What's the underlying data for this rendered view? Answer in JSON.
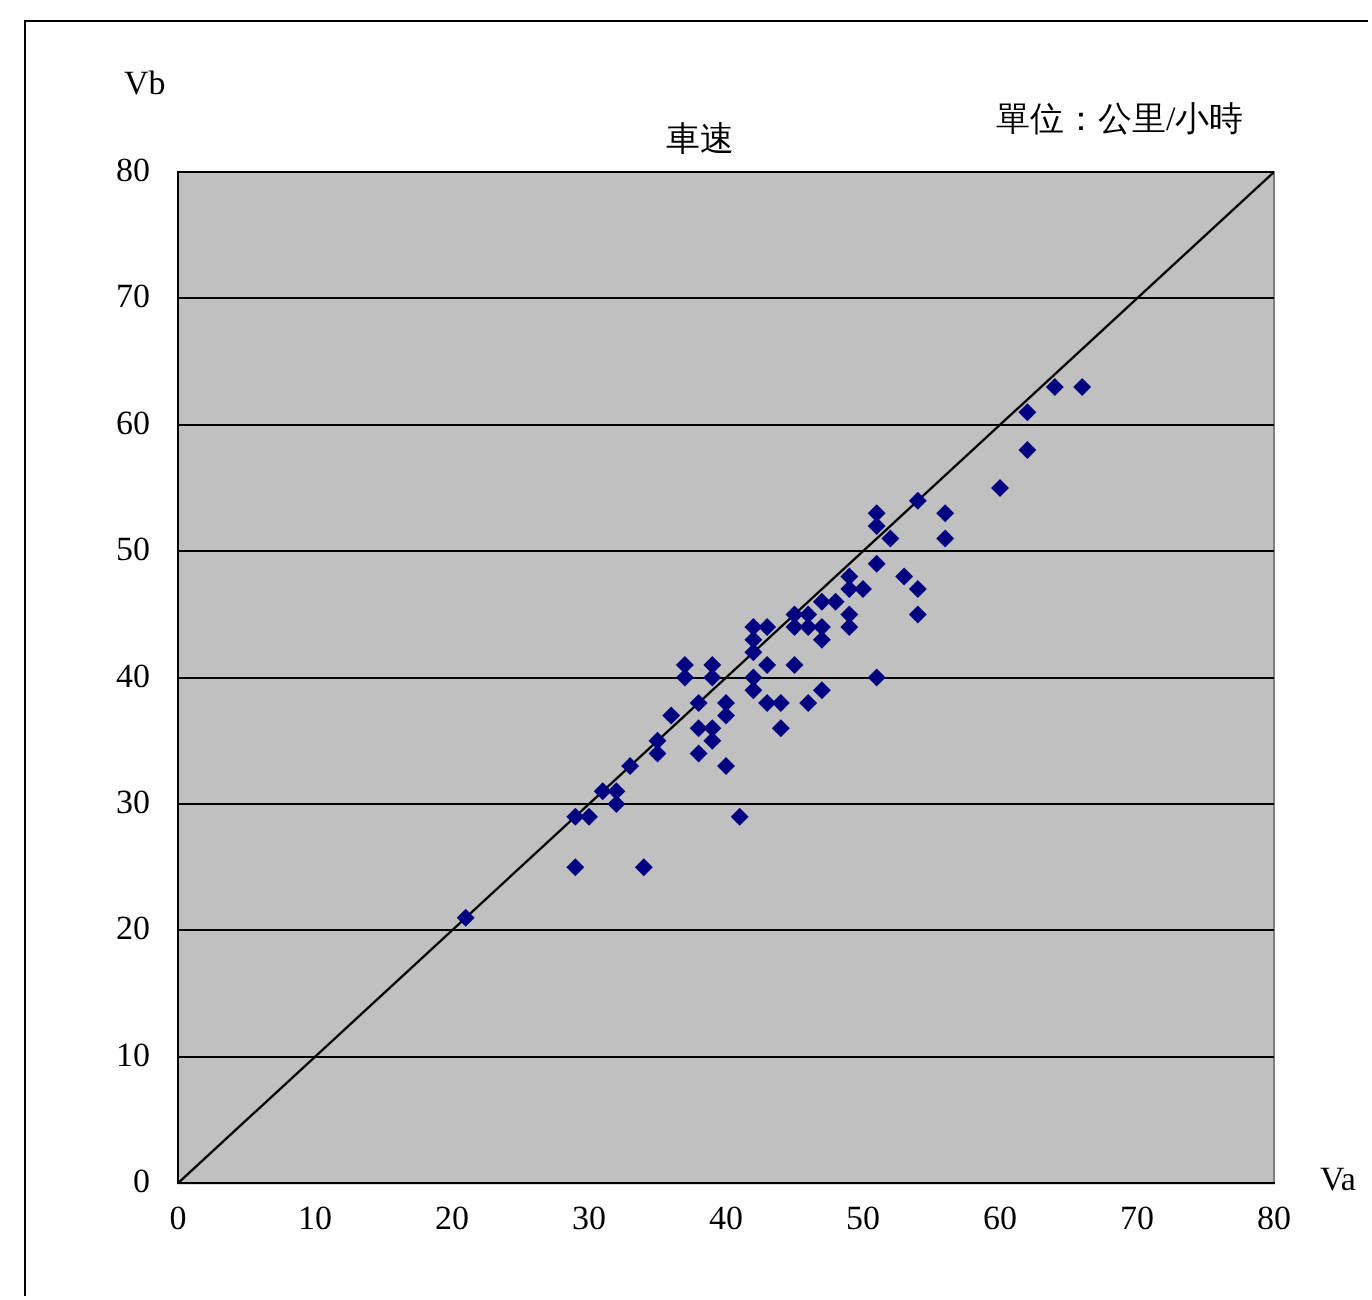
{
  "chart_data": {
    "type": "scatter",
    "title": "車速",
    "xlabel": "Va",
    "ylabel": "Vb",
    "annotations": [
      "單位：公里/小時"
    ],
    "xlim": [
      0,
      80
    ],
    "xticks": [
      0,
      10,
      20,
      30,
      40,
      50,
      60,
      70,
      80
    ],
    "ylim": [
      0,
      80
    ],
    "yticks": [
      0,
      10,
      20,
      30,
      40,
      50,
      60,
      70,
      80
    ],
    "grid": "y",
    "legend": false,
    "marker": "diamond",
    "series": [
      {
        "type": "scatter",
        "color": "#000080",
        "x": [
          21,
          29,
          29,
          30,
          31,
          32,
          32,
          33,
          34,
          35,
          35,
          36,
          37,
          37,
          38,
          38,
          38,
          39,
          39,
          39,
          39,
          40,
          40,
          40,
          41,
          42,
          42,
          42,
          42,
          42,
          43,
          43,
          43,
          44,
          44,
          45,
          45,
          45,
          46,
          46,
          46,
          47,
          47,
          47,
          47,
          48,
          49,
          49,
          49,
          49,
          50,
          51,
          51,
          51,
          51,
          52,
          53,
          54,
          54,
          54,
          56,
          56,
          60,
          62,
          62,
          64,
          66
        ],
        "values": [
          21,
          29,
          25,
          29,
          31,
          31,
          30,
          33,
          25,
          35,
          34,
          37,
          41,
          40,
          38,
          36,
          34,
          41,
          40,
          36,
          35,
          38,
          37,
          33,
          29,
          44,
          43,
          42,
          40,
          39,
          44,
          41,
          38,
          38,
          36,
          45,
          44,
          41,
          45,
          44,
          38,
          46,
          44,
          43,
          39,
          46,
          48,
          47,
          45,
          44,
          47,
          53,
          52,
          49,
          40,
          51,
          48,
          54,
          47,
          45,
          53,
          51,
          55,
          61,
          58,
          63,
          63
        ]
      },
      {
        "type": "line",
        "color": "#000000",
        "marker": "none",
        "x": [
          0,
          80
        ],
        "values": [
          0,
          80
        ]
      }
    ]
  }
}
